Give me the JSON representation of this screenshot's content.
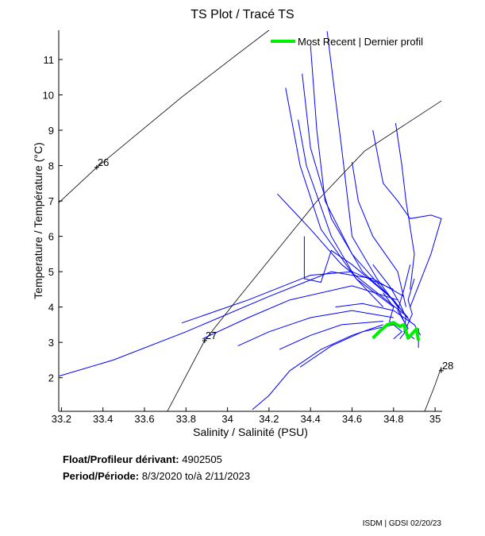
{
  "chart_data": {
    "type": "line",
    "title": "TS Plot / Tracé TS",
    "xlabel": "Salinity / Salinité (PSU)",
    "ylabel": "Temperature / Température (°C)",
    "xlim": [
      33.187,
      35.034
    ],
    "ylim": [
      1.05,
      11.83
    ],
    "xticks": [
      "33.2",
      "33.4",
      "33.6",
      "33.8",
      "34",
      "34.2",
      "34.4",
      "34.6",
      "34.8",
      "35"
    ],
    "yticks": [
      "2",
      "3",
      "4",
      "5",
      "6",
      "7",
      "8",
      "9",
      "10",
      "11"
    ],
    "legend": {
      "label": "Most Recent | Dernier profil",
      "position": "top-right",
      "color": "#00ee00"
    },
    "series_color": "#0000ff",
    "density_contours": [
      {
        "label": "26",
        "label_at": [
          33.37,
          7.95
        ],
        "points": [
          [
            33.187,
            6.95
          ],
          [
            33.37,
            7.95
          ],
          [
            33.78,
            9.94
          ],
          [
            34.05,
            11.16
          ],
          [
            34.2,
            11.83
          ]
        ]
      },
      {
        "label": "27",
        "label_at": [
          33.89,
          3.05
        ],
        "points": [
          [
            33.71,
            1.05
          ],
          [
            33.89,
            3.05
          ],
          [
            34.05,
            4.24
          ],
          [
            34.43,
            6.99
          ],
          [
            34.66,
            8.41
          ],
          [
            35.03,
            9.83
          ]
        ]
      },
      {
        "label": "28",
        "label_at": [
          35.03,
          2.2
        ],
        "points": [
          [
            34.95,
            1.05
          ],
          [
            35.0,
            1.8
          ],
          [
            35.03,
            2.3
          ]
        ]
      }
    ],
    "profiles": [
      [
        [
          34.48,
          11.8
        ],
        [
          34.55,
          8.5
        ],
        [
          34.6,
          6.0
        ],
        [
          34.72,
          4.8
        ],
        [
          34.82,
          4.0
        ],
        [
          34.85,
          3.6
        ]
      ],
      [
        [
          34.4,
          11.4
        ],
        [
          34.43,
          9.0
        ],
        [
          34.47,
          7.0
        ],
        [
          34.6,
          5.5
        ],
        [
          34.75,
          4.5
        ],
        [
          34.87,
          3.7
        ]
      ],
      [
        [
          34.36,
          10.6
        ],
        [
          34.4,
          8.5
        ],
        [
          34.5,
          6.5
        ],
        [
          34.65,
          5.0
        ],
        [
          34.8,
          4.2
        ],
        [
          34.88,
          3.6
        ]
      ],
      [
        [
          34.28,
          10.2
        ],
        [
          34.35,
          8.0
        ],
        [
          34.45,
          6.2
        ],
        [
          34.62,
          4.8
        ],
        [
          34.8,
          4.0
        ]
      ],
      [
        [
          34.24,
          7.2
        ],
        [
          34.4,
          6.2
        ],
        [
          34.55,
          5.2
        ],
        [
          34.7,
          4.5
        ],
        [
          34.85,
          3.8
        ]
      ],
      [
        [
          34.34,
          9.3
        ],
        [
          34.38,
          8.0
        ],
        [
          34.5,
          6.0
        ],
        [
          34.62,
          4.8
        ],
        [
          34.75,
          4.0
        ]
      ],
      [
        [
          34.7,
          9.0
        ],
        [
          34.75,
          7.5
        ],
        [
          34.82,
          7.0
        ],
        [
          34.88,
          6.5
        ],
        [
          34.98,
          6.6
        ],
        [
          35.03,
          6.5
        ],
        [
          34.98,
          5.5
        ],
        [
          34.92,
          4.6
        ],
        [
          34.88,
          4.0
        ]
      ],
      [
        [
          34.81,
          9.2
        ],
        [
          34.84,
          8.0
        ],
        [
          34.86,
          7.0
        ],
        [
          34.9,
          5.5
        ],
        [
          34.88,
          4.5
        ]
      ],
      [
        [
          34.6,
          8.1
        ],
        [
          34.63,
          7.0
        ],
        [
          34.7,
          6.0
        ],
        [
          34.82,
          5.0
        ],
        [
          34.86,
          4.0
        ]
      ],
      [
        [
          33.19,
          2.05
        ],
        [
          33.45,
          2.5
        ],
        [
          33.8,
          3.3
        ],
        [
          34.2,
          4.3
        ],
        [
          34.5,
          5.0
        ],
        [
          34.7,
          4.8
        ],
        [
          34.85,
          4.3
        ]
      ],
      [
        [
          33.78,
          3.55
        ],
        [
          34.1,
          4.2
        ],
        [
          34.4,
          4.9
        ],
        [
          34.6,
          5.0
        ],
        [
          34.8,
          4.5
        ]
      ],
      [
        [
          33.88,
          3.1
        ],
        [
          34.1,
          3.7
        ],
        [
          34.3,
          4.2
        ],
        [
          34.6,
          4.6
        ],
        [
          34.82,
          4.2
        ]
      ],
      [
        [
          34.05,
          2.9
        ],
        [
          34.2,
          3.3
        ],
        [
          34.4,
          3.7
        ],
        [
          34.6,
          3.9
        ],
        [
          34.8,
          3.7
        ]
      ],
      [
        [
          34.12,
          1.1
        ],
        [
          34.2,
          1.5
        ],
        [
          34.3,
          2.2
        ],
        [
          34.45,
          2.8
        ],
        [
          34.6,
          3.2
        ],
        [
          34.75,
          3.5
        ]
      ],
      [
        [
          34.25,
          2.8
        ],
        [
          34.4,
          3.2
        ],
        [
          34.55,
          3.5
        ],
        [
          34.75,
          3.6
        ]
      ],
      [
        [
          34.35,
          2.3
        ],
        [
          34.5,
          2.9
        ],
        [
          34.65,
          3.3
        ],
        [
          34.8,
          3.5
        ]
      ],
      [
        [
          34.37,
          6.0
        ],
        [
          34.37,
          4.8
        ],
        [
          34.45,
          4.7
        ],
        [
          34.5,
          5.6
        ],
        [
          34.6,
          5.2
        ],
        [
          34.8,
          4.2
        ]
      ],
      [
        [
          34.52,
          4.0
        ],
        [
          34.65,
          4.1
        ],
        [
          34.8,
          3.9
        ],
        [
          34.9,
          3.5
        ],
        [
          34.93,
          3.2
        ]
      ],
      [
        [
          34.7,
          5.2
        ],
        [
          34.78,
          4.6
        ],
        [
          34.83,
          4.1
        ],
        [
          34.86,
          3.7
        ],
        [
          34.85,
          3.3
        ],
        [
          34.9,
          3.1
        ]
      ],
      [
        [
          34.88,
          5.2
        ],
        [
          34.85,
          4.5
        ],
        [
          34.82,
          3.9
        ],
        [
          34.87,
          3.4
        ],
        [
          34.83,
          3.1
        ]
      ],
      [
        [
          34.92,
          3.4
        ],
        [
          34.92,
          2.85
        ]
      ],
      [
        [
          34.75,
          4.4
        ],
        [
          34.8,
          4.0
        ],
        [
          34.78,
          3.6
        ],
        [
          34.84,
          3.3
        ],
        [
          34.8,
          3.1
        ]
      ],
      [
        [
          34.9,
          4.8
        ],
        [
          34.87,
          4.2
        ],
        [
          34.89,
          3.8
        ],
        [
          34.86,
          3.4
        ]
      ]
    ],
    "most_recent": [
      [
        34.7,
        3.12
      ],
      [
        34.74,
        3.35
      ],
      [
        34.77,
        3.5
      ],
      [
        34.8,
        3.56
      ],
      [
        34.83,
        3.45
      ],
      [
        34.85,
        3.5
      ],
      [
        34.87,
        3.12
      ],
      [
        34.91,
        3.38
      ],
      [
        34.92,
        3.05
      ]
    ]
  },
  "info": {
    "float_label": "Float/Profileur dérivant:",
    "float_id": "4902505",
    "period_label": "Period/Période:",
    "period_start": "8/3/2020",
    "period_sep": "to/à",
    "period_end": "2/11/2023"
  },
  "credit": "ISDM | GDSI 02/20/23"
}
